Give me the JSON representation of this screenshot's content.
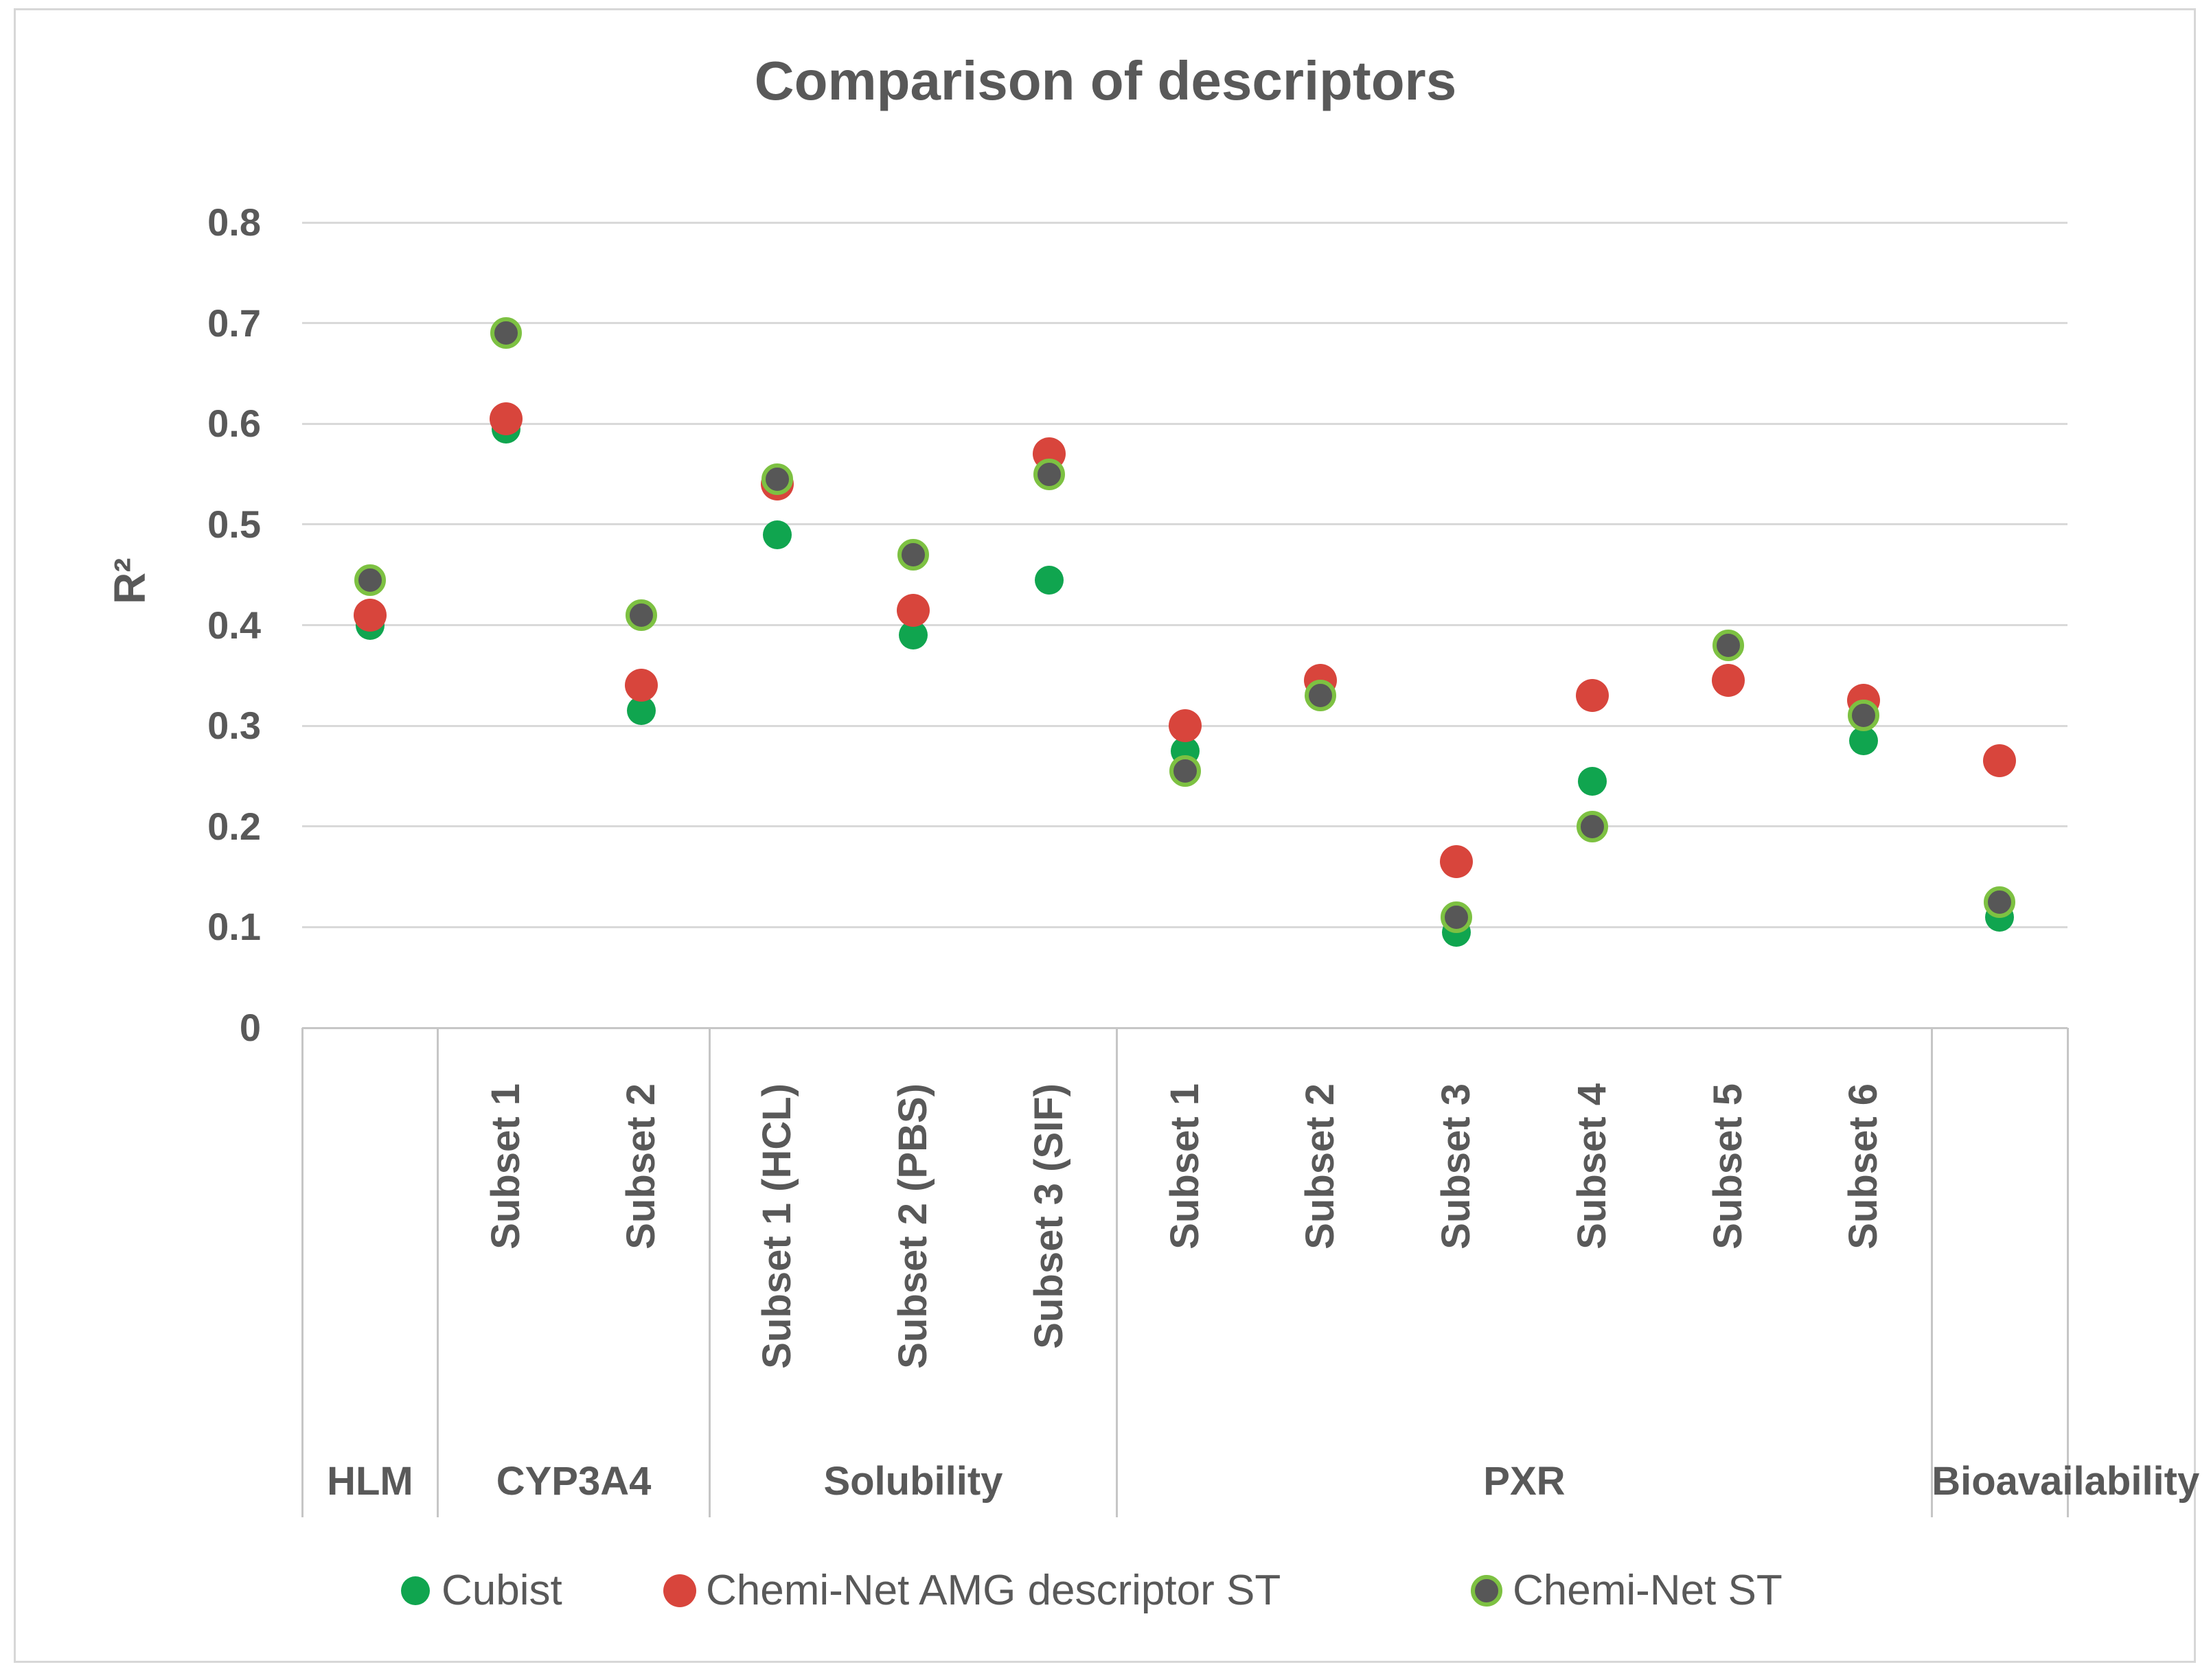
{
  "chart_data": {
    "type": "scatter",
    "title": "Comparison of descriptors",
    "ylabel": "R²",
    "ylim": [
      0,
      0.8
    ],
    "y_ticks": [
      "0.8",
      "0.7",
      "0.6",
      "0.5",
      "0.4",
      "0.3",
      "0.2",
      "0.1",
      "0"
    ],
    "grid": "horizontal",
    "legend_position": "bottom",
    "groups": [
      {
        "label": "HLM",
        "span": 1
      },
      {
        "label": "CYP3A4",
        "span": 2
      },
      {
        "label": "Solubility",
        "span": 3
      },
      {
        "label": "PXR",
        "span": 6
      },
      {
        "label": "Bioavailability",
        "span": 1
      }
    ],
    "categories": [
      {
        "group": "HLM",
        "subset": ""
      },
      {
        "group": "CYP3A4",
        "subset": "Subset 1"
      },
      {
        "group": "CYP3A4",
        "subset": "Subset 2"
      },
      {
        "group": "Solubility",
        "subset": "Subset 1 (HCL)"
      },
      {
        "group": "Solubility",
        "subset": "Subset 2 (PBS)"
      },
      {
        "group": "Solubility",
        "subset": "Subset 3 (SIF)"
      },
      {
        "group": "PXR",
        "subset": "Subset 1"
      },
      {
        "group": "PXR",
        "subset": "Subset 2"
      },
      {
        "group": "PXR",
        "subset": "Subset 3"
      },
      {
        "group": "PXR",
        "subset": "Subset 4"
      },
      {
        "group": "PXR",
        "subset": "Subset 5"
      },
      {
        "group": "PXR",
        "subset": "Subset 6"
      },
      {
        "group": "Bioavailability",
        "subset": ""
      }
    ],
    "series": [
      {
        "name": "Cubist",
        "marker": {
          "color": "#10A54F",
          "diameter": 42
        },
        "values": [
          0.4,
          0.595,
          0.315,
          0.49,
          0.39,
          0.445,
          0.275,
          0.335,
          0.095,
          0.245,
          0.345,
          0.285,
          0.11
        ]
      },
      {
        "name": "Chemi-Net AMG descriptor ST",
        "marker": {
          "color": "#D8453C",
          "diameter": 48
        },
        "values": [
          0.41,
          0.605,
          0.34,
          0.54,
          0.415,
          0.57,
          0.3,
          0.345,
          0.165,
          0.33,
          0.345,
          0.325,
          0.265
        ]
      },
      {
        "name": "Chemi-Net ST",
        "marker": {
          "color": "#575757",
          "diameter": 34,
          "ring_color": "#7DC142",
          "ring_width": 6
        },
        "values": [
          0.445,
          0.69,
          0.41,
          0.545,
          0.47,
          0.55,
          0.255,
          0.33,
          0.11,
          0.2,
          0.38,
          0.31,
          0.125
        ]
      }
    ],
    "colors": {
      "text": "#595959",
      "gridline": "#D9D9D9",
      "axis_line": "#C6C6C6"
    }
  }
}
